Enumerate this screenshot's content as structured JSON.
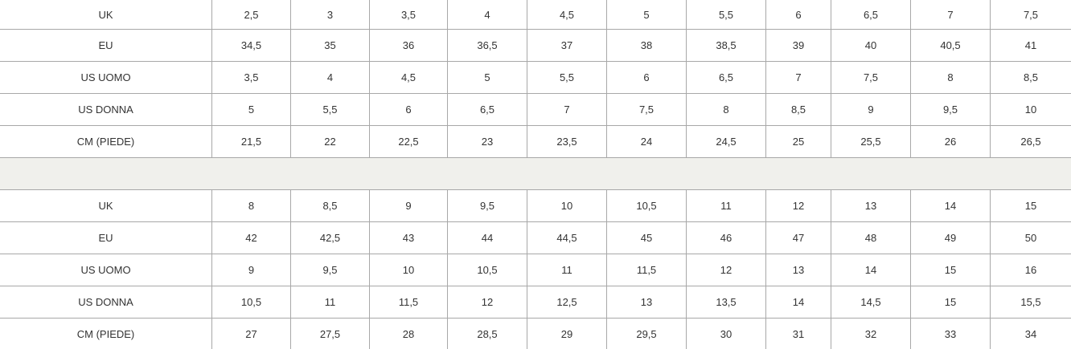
{
  "tables": [
    {
      "rows": [
        {
          "label": "UK",
          "values": [
            "2,5",
            "3",
            "3,5",
            "4",
            "4,5",
            "5",
            "5,5",
            "6",
            "6,5",
            "7",
            "7,5"
          ]
        },
        {
          "label": "EU",
          "values": [
            "34,5",
            "35",
            "36",
            "36,5",
            "37",
            "38",
            "38,5",
            "39",
            "40",
            "40,5",
            "41"
          ]
        },
        {
          "label": "US UOMO",
          "values": [
            "3,5",
            "4",
            "4,5",
            "5",
            "5,5",
            "6",
            "6,5",
            "7",
            "7,5",
            "8",
            "8,5"
          ]
        },
        {
          "label": "US DONNA",
          "values": [
            "5",
            "5,5",
            "6",
            "6,5",
            "7",
            "7,5",
            "8",
            "8,5",
            "9",
            "9,5",
            "10"
          ]
        },
        {
          "label": "CM (PIEDE)",
          "values": [
            "21,5",
            "22",
            "22,5",
            "23",
            "23,5",
            "24",
            "24,5",
            "25",
            "25,5",
            "26",
            "26,5"
          ]
        }
      ]
    },
    {
      "rows": [
        {
          "label": "UK",
          "values": [
            "8",
            "8,5",
            "9",
            "9,5",
            "10",
            "10,5",
            "11",
            "12",
            "13",
            "14",
            "15"
          ]
        },
        {
          "label": "EU",
          "values": [
            "42",
            "42,5",
            "43",
            "44",
            "44,5",
            "45",
            "46",
            "47",
            "48",
            "49",
            "50"
          ]
        },
        {
          "label": "US UOMO",
          "values": [
            "9",
            "9,5",
            "10",
            "10,5",
            "11",
            "11,5",
            "12",
            "13",
            "14",
            "15",
            "16"
          ]
        },
        {
          "label": "US DONNA",
          "values": [
            "10,5",
            "11",
            "11,5",
            "12",
            "12,5",
            "13",
            "13,5",
            "14",
            "14,5",
            "15",
            "15,5"
          ]
        },
        {
          "label": "CM (PIEDE)",
          "values": [
            "27",
            "27,5",
            "28",
            "28,5",
            "29",
            "29,5",
            "30",
            "31",
            "32",
            "33",
            "34"
          ]
        }
      ]
    }
  ],
  "colors": {
    "band": "#f0f0ec",
    "grid": "#a8a8a8",
    "text": "#333333"
  }
}
